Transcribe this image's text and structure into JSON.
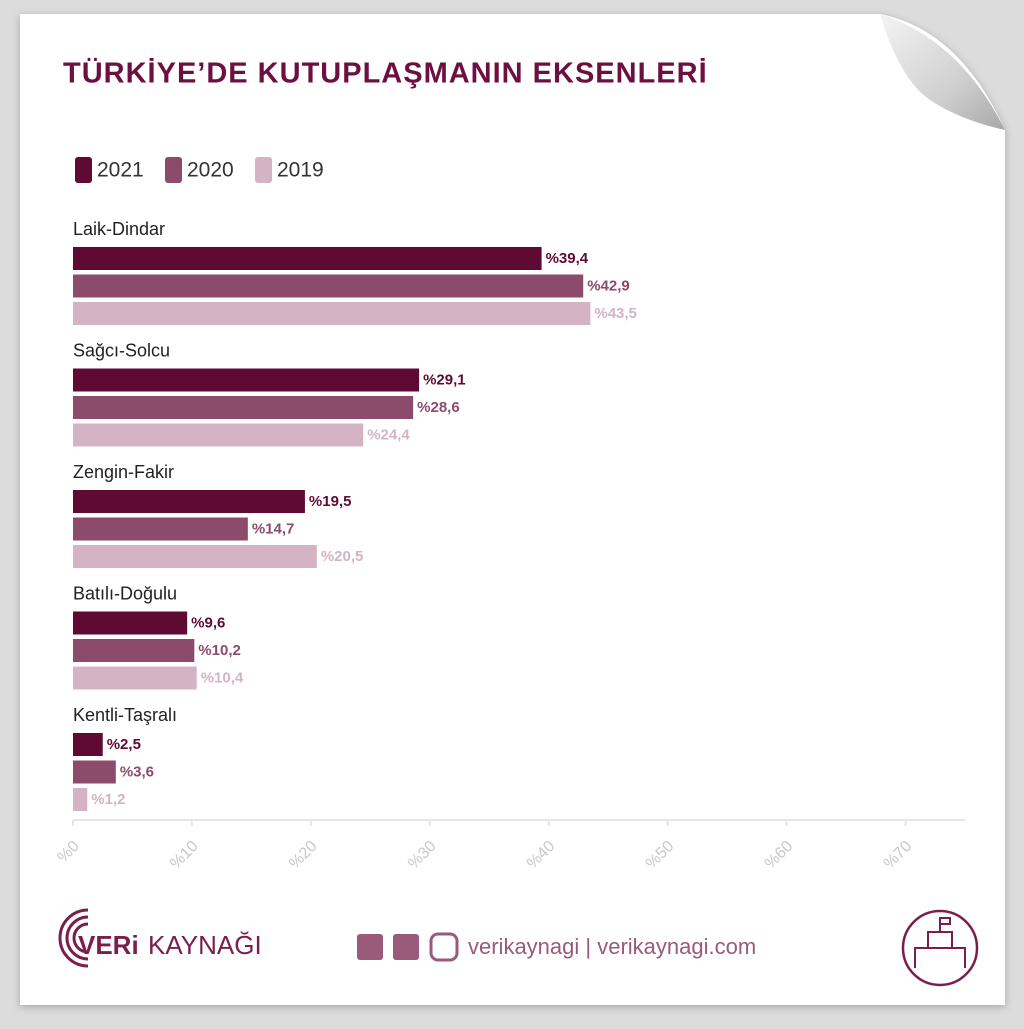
{
  "chart_data": {
    "type": "bar",
    "orientation": "horizontal",
    "title": "TÜRKİYE’DE KUTUPLAŞMANIN EKSENLERİ",
    "categories": [
      "Laik-Dindar",
      "Sağcı-Solcu",
      "Zengin-Fakir",
      "Batılı-Doğulu",
      "Kentli-Taşralı"
    ],
    "series": [
      {
        "name": "2021",
        "color": "#5e0a32",
        "values": [
          39.4,
          29.1,
          19.5,
          9.6,
          2.5
        ],
        "value_labels": [
          "%39,4",
          "%29,1",
          "%19,5",
          "%9,6",
          "%2,5"
        ]
      },
      {
        "name": "2020",
        "color": "#8c4b6b",
        "values": [
          42.9,
          28.6,
          14.7,
          10.2,
          3.6
        ],
        "value_labels": [
          "%42,9",
          "%28,6",
          "%14,7",
          "%10,2",
          "%3,6"
        ]
      },
      {
        "name": "2019",
        "color": "#d4b4c4",
        "values": [
          43.5,
          24.4,
          20.5,
          10.4,
          1.2
        ],
        "value_labels": [
          "%43,5",
          "%24,4",
          "%20,5",
          "%10,4",
          "%1,2"
        ]
      }
    ],
    "xlim": [
      0,
      75
    ],
    "xticks": [
      {
        "value": 0,
        "label": "%0"
      },
      {
        "value": 10,
        "label": "%10"
      },
      {
        "value": 20,
        "label": "%20"
      },
      {
        "value": 30,
        "label": "%30"
      },
      {
        "value": 40,
        "label": "%40"
      },
      {
        "value": 50,
        "label": "%50"
      },
      {
        "value": 60,
        "label": "%60"
      },
      {
        "value": 70,
        "label": "%70"
      }
    ],
    "legend": "top-left",
    "grid": false
  },
  "footer": {
    "brand_bold": "VERi",
    "brand_light": "KAYNAĞI",
    "social": "verikaynagi | verikaynagi.com"
  }
}
